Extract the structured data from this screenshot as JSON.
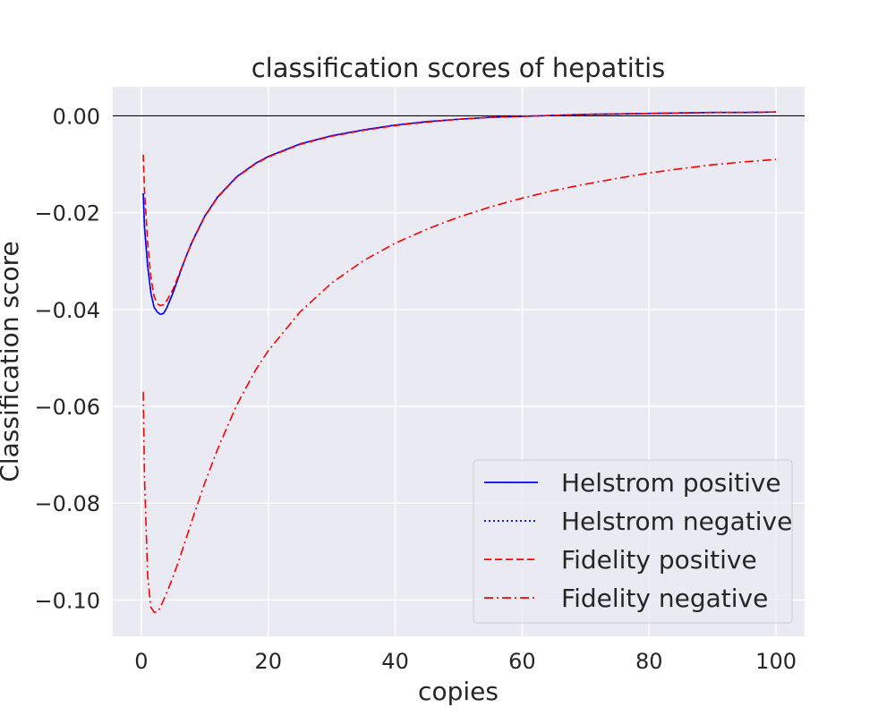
{
  "chart_data": {
    "type": "line",
    "title": "classification scores of hepatitis",
    "xlabel": "copies",
    "ylabel": "Classification score",
    "xlim": [
      -4.5,
      104.5
    ],
    "ylim": [
      -0.1075,
      0.006
    ],
    "xticks": [
      0,
      20,
      40,
      60,
      80,
      100
    ],
    "xtick_labels": [
      "0",
      "20",
      "40",
      "60",
      "80",
      "100"
    ],
    "yticks": [
      0.0,
      -0.02,
      -0.04,
      -0.06,
      -0.08,
      -0.1
    ],
    "ytick_labels": [
      "0.00",
      "−0.02",
      "−0.04",
      "−0.06",
      "−0.08",
      "−0.10"
    ],
    "grid": true,
    "legend_position": "lower right",
    "reference_line": {
      "y": 0.0,
      "color": "#000000"
    },
    "x": [
      0.3,
      0.5,
      1,
      1.5,
      2,
      2.5,
      3,
      3.5,
      4,
      5,
      6,
      7,
      8,
      10,
      12,
      15,
      18,
      20,
      25,
      30,
      35,
      40,
      45,
      50,
      55,
      60,
      65,
      70,
      75,
      80,
      85,
      90,
      95,
      100
    ],
    "series": [
      {
        "name": "Helstrom positive",
        "color": "#0000ff",
        "style": "solid",
        "values": [
          -0.016,
          -0.023,
          -0.031,
          -0.0365,
          -0.0395,
          -0.0405,
          -0.041,
          -0.0408,
          -0.0397,
          -0.0365,
          -0.0328,
          -0.0292,
          -0.026,
          -0.0207,
          -0.0168,
          -0.0126,
          -0.0098,
          -0.0084,
          -0.0058,
          -0.0041,
          -0.0029,
          -0.0019,
          -0.0012,
          -0.0007,
          -0.0003,
          -0.0001,
          0.0001,
          0.0003,
          0.0004,
          0.0005,
          0.0006,
          0.0007,
          0.0007,
          0.0008
        ]
      },
      {
        "name": "Helstrom negative",
        "color": "#0000ff",
        "style": "dotted",
        "values": [
          -0.016,
          -0.023,
          -0.031,
          -0.0365,
          -0.0395,
          -0.0405,
          -0.041,
          -0.0408,
          -0.0397,
          -0.0365,
          -0.0328,
          -0.0292,
          -0.026,
          -0.0207,
          -0.0168,
          -0.0126,
          -0.0098,
          -0.0084,
          -0.0058,
          -0.0041,
          -0.0029,
          -0.0019,
          -0.0012,
          -0.0007,
          -0.0003,
          -0.0001,
          0.0001,
          0.0003,
          0.0004,
          0.0005,
          0.0006,
          0.0007,
          0.0007,
          0.0008
        ]
      },
      {
        "name": "Fidelity positive",
        "color": "#ff0000",
        "style": "dashed",
        "values": [
          -0.008,
          -0.0155,
          -0.0262,
          -0.0333,
          -0.0372,
          -0.0388,
          -0.0392,
          -0.039,
          -0.0382,
          -0.0358,
          -0.0325,
          -0.0292,
          -0.0261,
          -0.0208,
          -0.0169,
          -0.0127,
          -0.0099,
          -0.0085,
          -0.0059,
          -0.0042,
          -0.003,
          -0.002,
          -0.0013,
          -0.0007,
          -0.0003,
          -0.0001,
          0.0001,
          0.0003,
          0.0004,
          0.0005,
          0.0006,
          0.0007,
          0.0007,
          0.0008
        ]
      },
      {
        "name": "Fidelity negative",
        "color": "#ff0000",
        "style": "dashdot",
        "values": [
          -0.057,
          -0.075,
          -0.095,
          -0.1015,
          -0.1025,
          -0.1025,
          -0.1015,
          -0.1,
          -0.0985,
          -0.0952,
          -0.0915,
          -0.0875,
          -0.0835,
          -0.0758,
          -0.0689,
          -0.0598,
          -0.0525,
          -0.0485,
          -0.0405,
          -0.0345,
          -0.0299,
          -0.0263,
          -0.0234,
          -0.0209,
          -0.0188,
          -0.017,
          -0.0154,
          -0.0141,
          -0.0129,
          -0.0118,
          -0.0109,
          -0.0101,
          -0.0095,
          -0.009
        ]
      }
    ]
  }
}
